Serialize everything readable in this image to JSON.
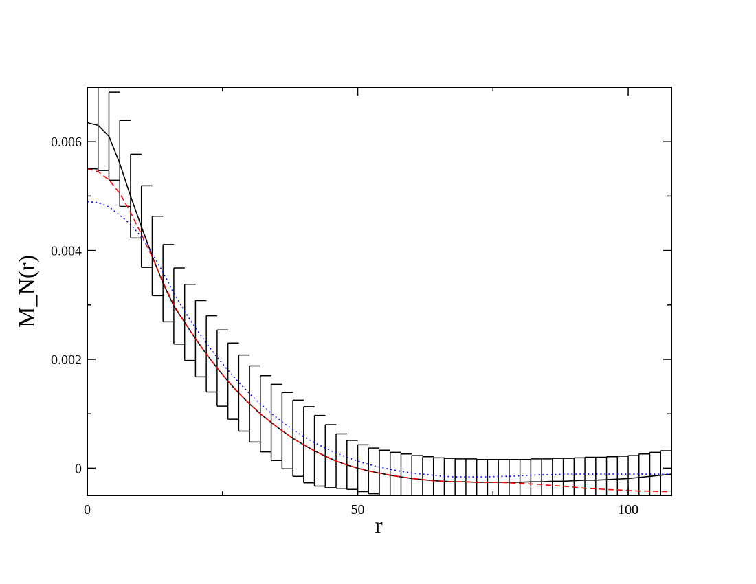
{
  "chart_data": {
    "type": "line",
    "xlabel": "r",
    "ylabel": "M_N(r)",
    "x": [
      0,
      2,
      4,
      6,
      8,
      10,
      12,
      14,
      16,
      18,
      20,
      22,
      24,
      26,
      28,
      30,
      32,
      34,
      36,
      38,
      40,
      42,
      44,
      46,
      48,
      50,
      52,
      54,
      56,
      58,
      60,
      62,
      64,
      66,
      68,
      70,
      72,
      74,
      76,
      78,
      80,
      82,
      84,
      86,
      88,
      90,
      92,
      94,
      96,
      98,
      100,
      102,
      104,
      106,
      108
    ],
    "series": [
      {
        "color": "#000000",
        "line_style": "solid",
        "values": [
          0.00635,
          0.0063,
          0.0061,
          0.0056,
          0.005,
          0.00444,
          0.0039,
          0.0034,
          0.00298,
          0.00268,
          0.00238,
          0.0021,
          0.00184,
          0.0016,
          0.00138,
          0.00118,
          0.001,
          0.00084,
          0.00069,
          0.00055,
          0.00043,
          0.00032,
          0.00022,
          0.00013,
          6e-05,
          0,
          -5e-05,
          -9e-05,
          -0.00013,
          -0.00016,
          -0.00019,
          -0.00021,
          -0.00023,
          -0.00024,
          -0.00025,
          -0.00025,
          -0.00026,
          -0.00026,
          -0.00026,
          -0.00026,
          -0.00026,
          -0.00025,
          -0.00025,
          -0.00024,
          -0.00024,
          -0.00023,
          -0.00022,
          -0.00022,
          -0.00021,
          -0.0002,
          -0.00019,
          -0.00017,
          -0.00015,
          -0.00013,
          -0.00011
        ],
        "errors": [
          0.00085,
          0.00083,
          0.00081,
          0.00079,
          0.00077,
          0.00075,
          0.00073,
          0.00071,
          0.0007,
          0.0007,
          0.0007,
          0.0007,
          0.0007,
          0.0007,
          0.0007,
          0.0007,
          0.0007,
          0.0007,
          0.0007,
          0.0007,
          0.0007,
          0.00065,
          0.00058,
          0.0005,
          0.00045,
          0.00043,
          0.00042,
          0.00042,
          0.00042,
          0.00042,
          0.00042,
          0.00042,
          0.00042,
          0.00042,
          0.00042,
          0.00042,
          0.00042,
          0.00042,
          0.00042,
          0.00042,
          0.00042,
          0.00042,
          0.00042,
          0.00042,
          0.00042,
          0.00042,
          0.00042,
          0.00042,
          0.00042,
          0.00042,
          0.00042,
          0.00043,
          0.00044,
          0.00045,
          0.00046
        ]
      },
      {
        "color": "#ff0000",
        "line_style": "dashed",
        "values": [
          0.0055,
          0.00545,
          0.0053,
          0.00505,
          0.0047,
          0.0043,
          0.00388,
          0.00342,
          0.003,
          0.00268,
          0.00238,
          0.0021,
          0.00184,
          0.0016,
          0.00138,
          0.00118,
          0.001,
          0.00084,
          0.00069,
          0.00055,
          0.00043,
          0.00032,
          0.00022,
          0.00013,
          6e-05,
          0,
          -5e-05,
          -9e-05,
          -0.00013,
          -0.00016,
          -0.00019,
          -0.00021,
          -0.00023,
          -0.00024,
          -0.00025,
          -0.00025,
          -0.00026,
          -0.00026,
          -0.00026,
          -0.00027,
          -0.00028,
          -0.00029,
          -0.0003,
          -0.00032,
          -0.00033,
          -0.00035,
          -0.00037,
          -0.00038,
          -0.00039,
          -0.0004,
          -0.00041,
          -0.00042,
          -0.00042,
          -0.00043,
          -0.00043
        ]
      },
      {
        "color": "#0000ff",
        "line_style": "dotted",
        "values": [
          0.0049,
          0.00488,
          0.0048,
          0.00465,
          0.00448,
          0.00425,
          0.00395,
          0.0036,
          0.00322,
          0.00288,
          0.00258,
          0.0023,
          0.00204,
          0.0018,
          0.00158,
          0.00137,
          0.00118,
          0.00101,
          0.00085,
          0.00071,
          0.00058,
          0.00047,
          0.00037,
          0.00028,
          0.0002,
          0.00013,
          7e-05,
          2e-05,
          -2e-05,
          -6e-05,
          -9e-05,
          -0.00011,
          -0.00013,
          -0.00015,
          -0.00016,
          -0.00016,
          -0.00016,
          -0.00016,
          -0.00015,
          -0.00015,
          -0.00014,
          -0.00013,
          -0.00012,
          -0.00012,
          -0.00011,
          -0.00011,
          -0.00011,
          -0.00011,
          -0.00011,
          -0.00011,
          -0.00011,
          -0.00011,
          -0.00011,
          -0.00011,
          -0.00011
        ]
      }
    ],
    "xlim": [
      0,
      108
    ],
    "xticks": [
      0,
      50,
      100
    ],
    "xminorticks": [
      25,
      75
    ],
    "ylim": [
      -0.0005,
      0.007
    ],
    "yticks": [
      0,
      0.002,
      0.004,
      0.006
    ],
    "yminorticks": [
      0.001,
      0.003,
      0.005
    ],
    "grid": false
  }
}
